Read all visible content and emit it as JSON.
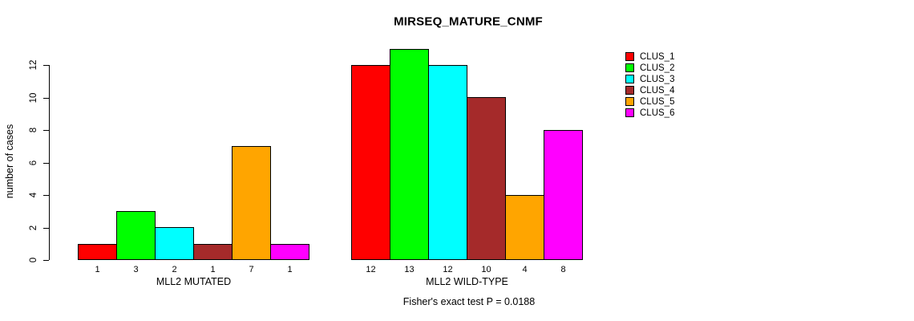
{
  "chart_data": {
    "type": "bar",
    "title": "MIRSEQ_MATURE_CNMF",
    "ylabel": "number of cases",
    "xlabel": "",
    "ylim": [
      0,
      12
    ],
    "yticks": [
      0,
      2,
      4,
      6,
      8,
      10,
      12
    ],
    "grid": false,
    "legend_position": "right",
    "bar_value_labels_shown": true,
    "categories": [
      "MLL2 MUTATED",
      "MLL2 WILD-TYPE"
    ],
    "series": [
      {
        "name": "CLUS_1",
        "color": "#FF0000",
        "values": [
          1,
          12
        ]
      },
      {
        "name": "CLUS_2",
        "color": "#00FF00",
        "values": [
          3,
          13
        ]
      },
      {
        "name": "CLUS_3",
        "color": "#00FFFF",
        "values": [
          2,
          12
        ]
      },
      {
        "name": "CLUS_4",
        "color": "#A52A2A",
        "values": [
          1,
          10
        ]
      },
      {
        "name": "CLUS_5",
        "color": "#FFA500",
        "values": [
          7,
          4
        ]
      },
      {
        "name": "CLUS_6",
        "color": "#FF00FF",
        "values": [
          1,
          8
        ]
      }
    ],
    "annotation": "Fisher's exact test P = 0.0188",
    "bar_edge_color": "#000000",
    "text_color": "#000000",
    "background_color": "#FFFFFF"
  }
}
